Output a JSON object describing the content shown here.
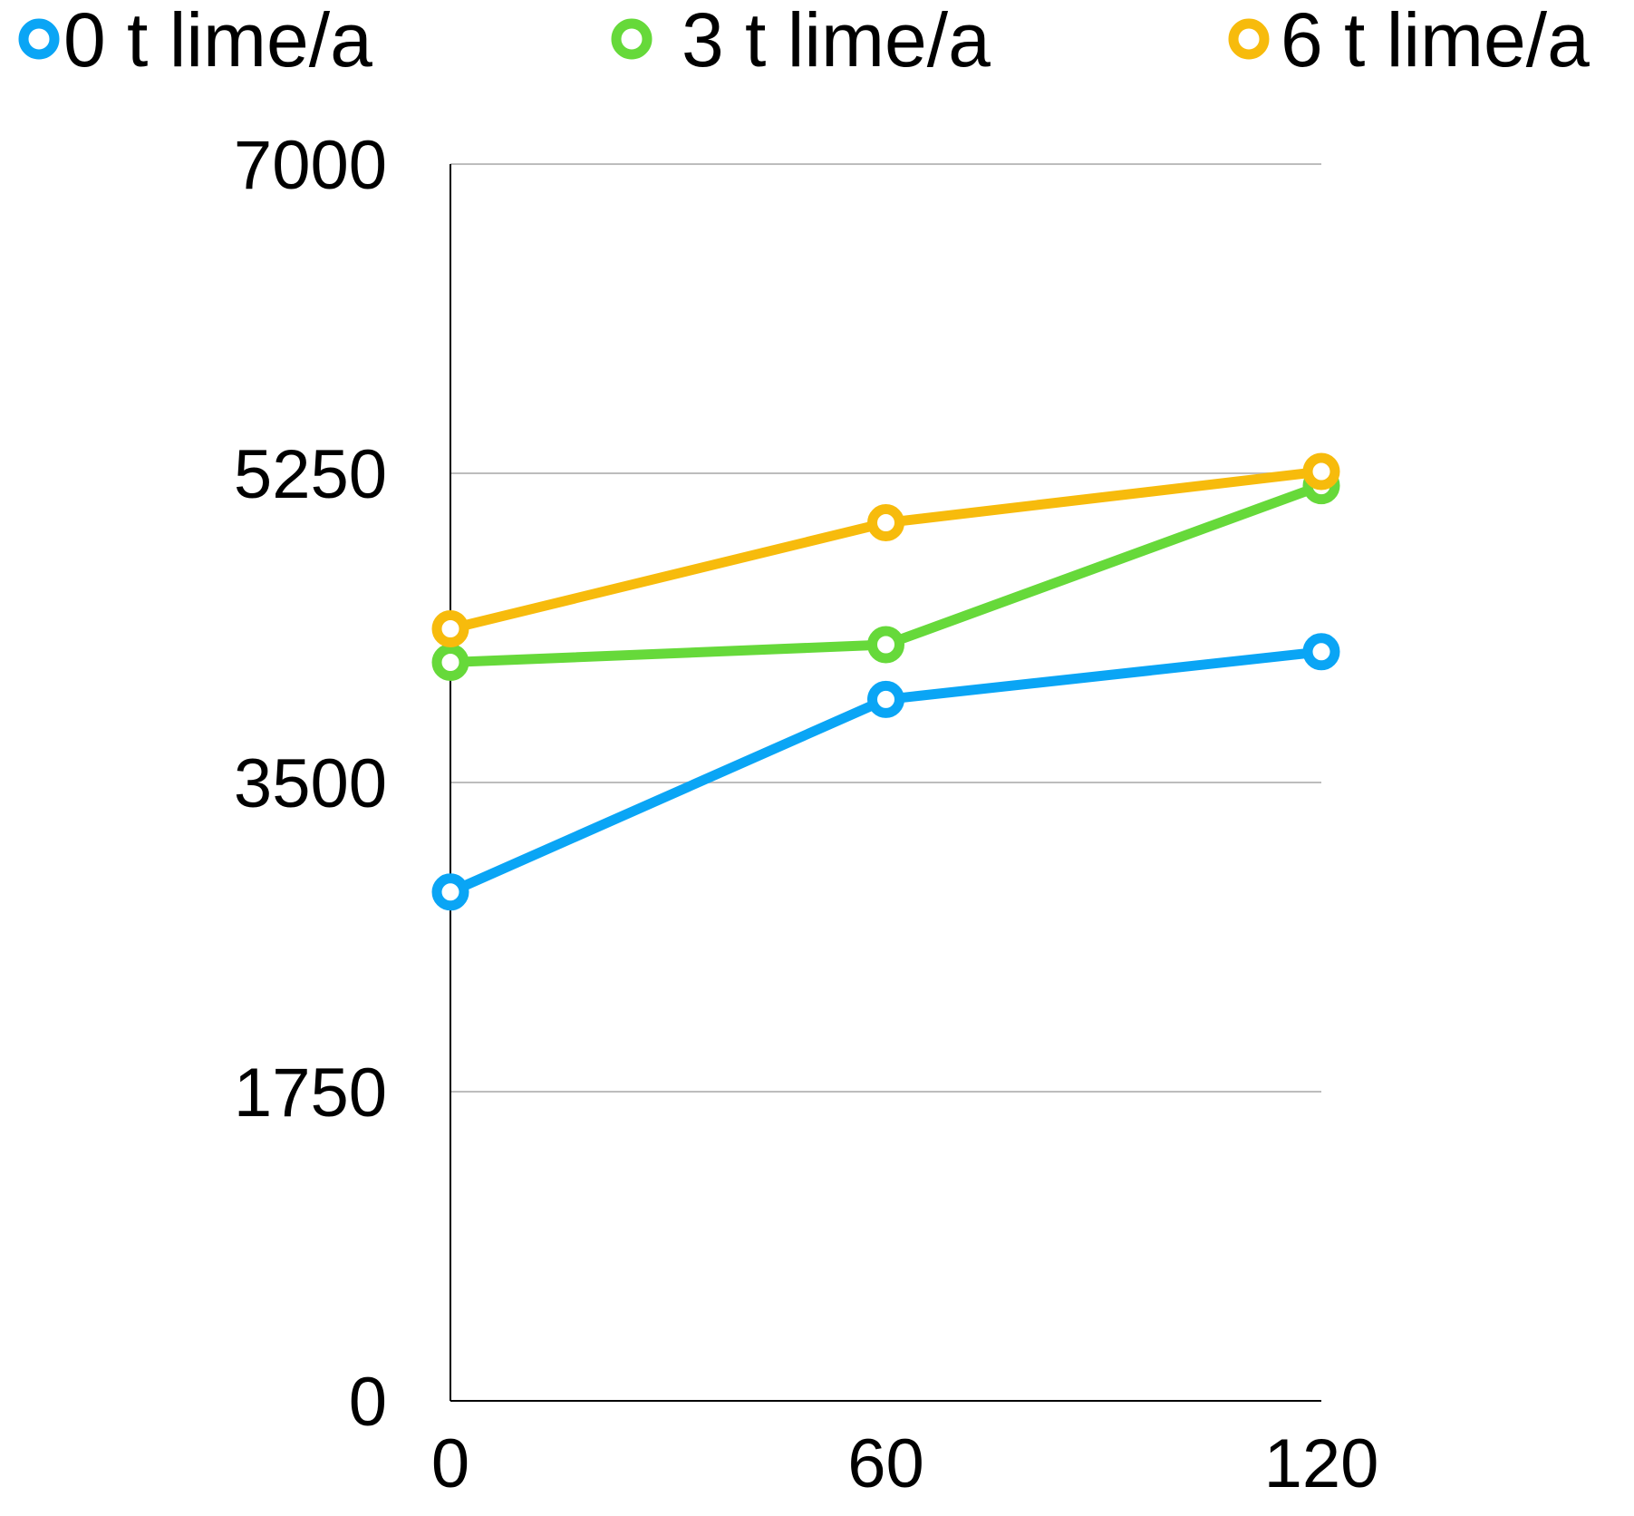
{
  "chart_data": {
    "type": "line",
    "x": [
      0,
      60,
      120
    ],
    "series": [
      {
        "name": "0 t lime/a",
        "color": "#0aa5f5",
        "values": [
          2880,
          3970,
          4240
        ]
      },
      {
        "name": "3 t lime/a",
        "color": "#66d93a",
        "values": [
          4180,
          4280,
          5180
        ]
      },
      {
        "name": "6 t lime/a",
        "color": "#f7bb0c",
        "values": [
          4370,
          4970,
          5260
        ]
      }
    ],
    "ylim": [
      0,
      7000
    ],
    "yticks": [
      0,
      1750,
      3500,
      5250,
      7000
    ],
    "ytick_labels": [
      "0",
      "1750",
      "3500",
      "5250",
      "7000"
    ],
    "xticks": [
      0,
      60,
      120
    ],
    "xtick_labels": [
      "0",
      "60",
      "120"
    ],
    "grid": true,
    "legend": "top",
    "title": "",
    "xlabel": "",
    "ylabel": ""
  }
}
